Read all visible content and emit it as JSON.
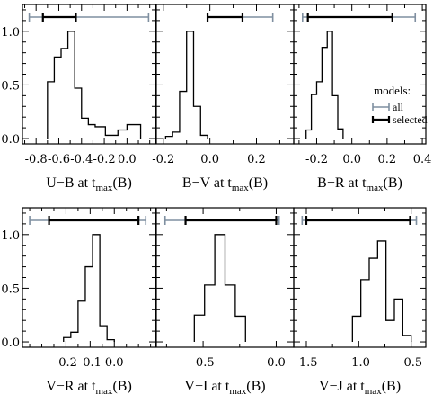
{
  "chart_data": [
    {
      "type": "histogram",
      "xlabel": {
        "main": "U−B at t",
        "sub": "max",
        "tail": "(B)"
      },
      "xlim": [
        -0.92,
        0.25
      ],
      "ylim": [
        -0.05,
        1.25
      ],
      "xticks": [
        -0.8,
        -0.6,
        -0.4,
        -0.2,
        0.0
      ],
      "xtick_labels": [
        "-0.8",
        "-0.6",
        "-0.4",
        "-0.2",
        "0.0"
      ],
      "yticks": [
        0.0,
        0.5,
        1.0
      ],
      "ytick_labels": [
        "0.0",
        "0.5",
        "1.0"
      ],
      "show_yticklabels": true,
      "bin_edges": [
        -0.7,
        -0.64,
        -0.58,
        -0.52,
        -0.46,
        -0.4,
        -0.34,
        -0.28,
        -0.19,
        -0.08,
        0.0,
        0.12
      ],
      "counts": [
        0.53,
        0.76,
        0.84,
        1.0,
        0.47,
        0.19,
        0.13,
        0.11,
        0.03,
        0.08,
        0.13
      ],
      "range_all": [
        -0.86,
        0.19
      ],
      "range_selected": [
        -0.74,
        -0.45
      ]
    },
    {
      "type": "histogram",
      "xlabel": {
        "main": "B−V at t",
        "sub": "max",
        "tail": "(B)"
      },
      "xlim": [
        -0.23,
        0.36
      ],
      "ylim": [
        -0.05,
        1.25
      ],
      "xticks": [
        -0.2,
        0.0,
        0.2
      ],
      "xtick_labels": [
        "-0.2",
        "0.0",
        "0.2"
      ],
      "yticks": [
        0.0,
        0.5,
        1.0
      ],
      "ytick_labels": [
        "0.0",
        "0.5",
        "1.0"
      ],
      "show_yticklabels": false,
      "bin_edges": [
        -0.19,
        -0.16,
        -0.13,
        -0.1,
        -0.07,
        -0.04,
        -0.01
      ],
      "counts": [
        0.02,
        0.06,
        0.44,
        1.0,
        0.3,
        0.03
      ],
      "range_all": [
        -0.01,
        0.27
      ],
      "range_selected": [
        -0.01,
        0.14
      ]
    },
    {
      "type": "histogram",
      "xlabel": {
        "main": "B−R at t",
        "sub": "max",
        "tail": "(B)"
      },
      "xlim": [
        -0.33,
        0.42
      ],
      "ylim": [
        -0.05,
        1.25
      ],
      "xticks": [
        -0.2,
        0.0,
        0.2,
        0.4
      ],
      "xtick_labels": [
        "-0.2",
        "0.0",
        "0.2",
        "0.4"
      ],
      "yticks": [
        0.0,
        0.5,
        1.0
      ],
      "ytick_labels": [
        "0.0",
        "0.5",
        "1.0"
      ],
      "show_yticklabels": false,
      "bin_edges": [
        -0.26,
        -0.23,
        -0.2,
        -0.17,
        -0.14,
        -0.11,
        -0.08,
        -0.05
      ],
      "counts": [
        0.08,
        0.41,
        0.53,
        0.85,
        1.0,
        0.4,
        0.09
      ],
      "range_all": [
        -0.28,
        0.36
      ],
      "range_selected": [
        -0.25,
        0.23
      ],
      "legend": {
        "title": "models:",
        "all": "all",
        "selected": "selected"
      }
    },
    {
      "type": "histogram",
      "xlabel": {
        "main": "V−R at t",
        "sub": "max",
        "tail": "(B)"
      },
      "xlim": [
        -0.38,
        0.17
      ],
      "ylim": [
        -0.05,
        1.25
      ],
      "xticks": [
        -0.2,
        -0.1,
        0.0
      ],
      "xtick_labels": [
        "-0.2",
        "-0.1",
        "0.0"
      ],
      "yticks": [
        0.0,
        0.5,
        1.0
      ],
      "ytick_labels": [
        "0.0",
        "0.5",
        "1.0"
      ],
      "show_yticklabels": true,
      "bin_edges": [
        -0.21,
        -0.18,
        -0.15,
        -0.12,
        -0.09,
        -0.06,
        -0.03,
        0.0
      ],
      "counts": [
        0.04,
        0.09,
        0.38,
        0.7,
        1.0,
        0.15,
        0.02
      ],
      "range_all": [
        -0.35,
        0.13
      ],
      "range_selected": [
        -0.27,
        0.1
      ]
    },
    {
      "type": "histogram",
      "xlabel": {
        "main": "V−I at t",
        "sub": "max",
        "tail": "(B)"
      },
      "xlim": [
        -0.82,
        0.12
      ],
      "ylim": [
        -0.05,
        1.25
      ],
      "xticks": [
        -0.5,
        0.0
      ],
      "xtick_labels": [
        "-0.5",
        "0.0"
      ],
      "yticks": [
        0.0,
        0.5,
        1.0
      ],
      "ytick_labels": [
        "0.0",
        "0.5",
        "1.0"
      ],
      "show_yticklabels": false,
      "bin_edges": [
        -0.56,
        -0.49,
        -0.42,
        -0.35,
        -0.28,
        -0.21
      ],
      "counts": [
        0.25,
        0.53,
        1.0,
        0.53,
        0.24
      ],
      "range_all": [
        -0.76,
        0.02
      ],
      "range_selected": [
        -0.62,
        0.0
      ]
    },
    {
      "type": "histogram",
      "xlabel": {
        "main": "V−J at t",
        "sub": "max",
        "tail": "(B)"
      },
      "xlim": [
        -1.62,
        -0.36
      ],
      "ylim": [
        -0.05,
        1.25
      ],
      "xticks": [
        -1.5,
        -1.0,
        -0.5
      ],
      "xtick_labels": [
        "-1.5",
        "-1.0",
        "-0.5"
      ],
      "yticks": [
        0.0,
        0.5,
        1.0
      ],
      "ytick_labels": [
        "0.0",
        "0.5",
        "1.0"
      ],
      "show_yticklabels": false,
      "bin_edges": [
        -1.06,
        -0.98,
        -0.9,
        -0.82,
        -0.74,
        -0.66,
        -0.58,
        -0.5
      ],
      "counts": [
        0.24,
        0.58,
        0.78,
        0.94,
        0.2,
        0.4,
        0.06
      ],
      "range_all": [
        -1.54,
        -0.45
      ],
      "range_selected": [
        -1.5,
        -0.51
      ]
    }
  ],
  "colors": {
    "all": "#7f8fa0",
    "selected": "#000000",
    "axes": "#000000",
    "hist": "#000000"
  }
}
